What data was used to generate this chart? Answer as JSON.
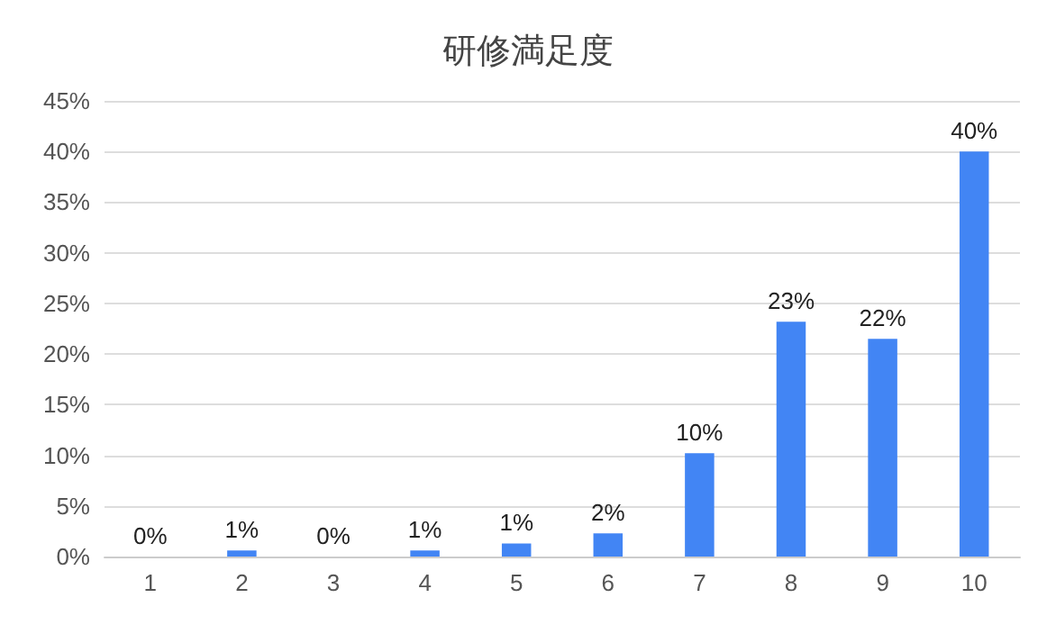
{
  "chart_data": {
    "type": "bar",
    "title": "研修満足度",
    "categories": [
      "1",
      "2",
      "3",
      "4",
      "5",
      "6",
      "7",
      "8",
      "9",
      "10"
    ],
    "values": [
      0,
      0.6,
      0,
      0.6,
      1.3,
      2.3,
      10.2,
      23.2,
      21.5,
      40
    ],
    "value_labels": [
      "0%",
      "1%",
      "0%",
      "1%",
      "1%",
      "2%",
      "10%",
      "23%",
      "22%",
      "40%"
    ],
    "color": "#4285f4",
    "ylim": [
      0,
      45
    ],
    "yticks": [
      {
        "value": 0,
        "label": "0%"
      },
      {
        "value": 5,
        "label": "5%"
      },
      {
        "value": 10,
        "label": "10%"
      },
      {
        "value": 15,
        "label": "15%"
      },
      {
        "value": 20,
        "label": "20%"
      },
      {
        "value": 25,
        "label": "25%"
      },
      {
        "value": 30,
        "label": "30%"
      },
      {
        "value": 35,
        "label": "35%"
      },
      {
        "value": 40,
        "label": "40%"
      },
      {
        "value": 45,
        "label": "45%"
      }
    ],
    "grid": true
  }
}
